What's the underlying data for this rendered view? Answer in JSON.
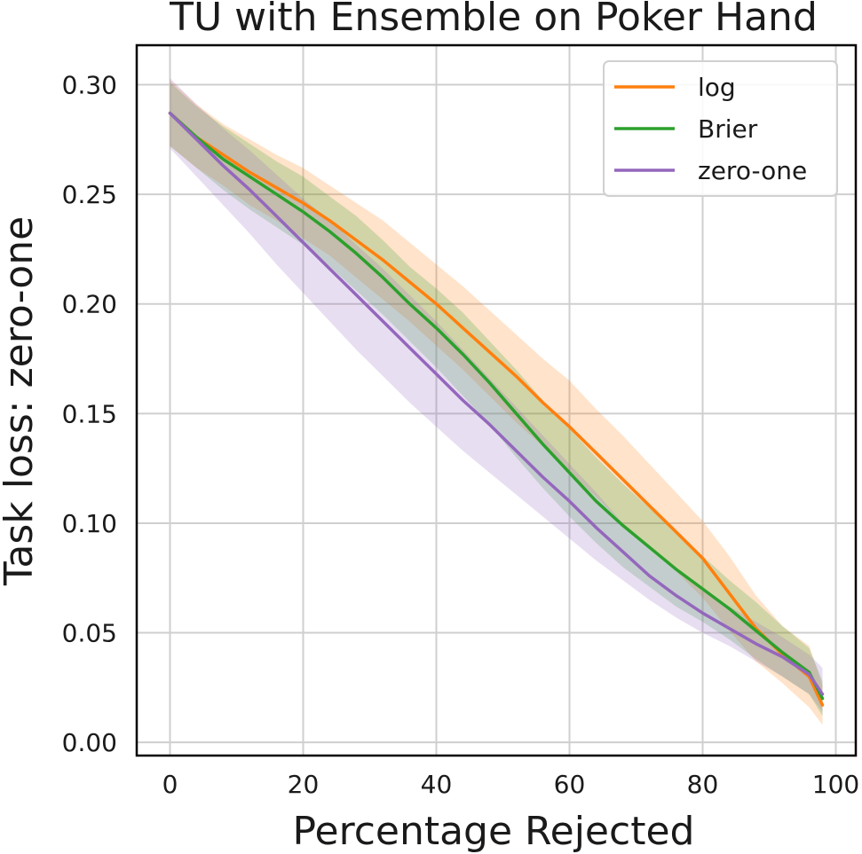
{
  "chart_data": {
    "type": "line",
    "title": "TU with Ensemble on Poker Hand",
    "xlabel": "Percentage Rejected",
    "ylabel": "Task loss: zero-one",
    "xlim": [
      -5,
      103
    ],
    "ylim": [
      -0.006,
      0.318
    ],
    "xticks": [
      0,
      20,
      40,
      60,
      80,
      100
    ],
    "xtick_labels": [
      "0",
      "20",
      "40",
      "60",
      "80",
      "100"
    ],
    "yticks": [
      0.0,
      0.05,
      0.1,
      0.15,
      0.2,
      0.25,
      0.3
    ],
    "ytick_labels": [
      "0.00",
      "0.05",
      "0.10",
      "0.15",
      "0.20",
      "0.25",
      "0.30"
    ],
    "grid": true,
    "legend_position": "top-right",
    "series": [
      {
        "name": "log",
        "color": "#ff7f0e",
        "x": [
          0,
          4,
          8,
          12,
          16,
          20,
          24,
          28,
          32,
          36,
          40,
          44,
          48,
          52,
          56,
          60,
          64,
          68,
          72,
          76,
          80,
          84,
          88,
          92,
          96,
          98
        ],
        "y": [
          0.287,
          0.276,
          0.268,
          0.26,
          0.253,
          0.246,
          0.238,
          0.229,
          0.22,
          0.21,
          0.2,
          0.189,
          0.178,
          0.167,
          0.155,
          0.144,
          0.132,
          0.12,
          0.108,
          0.096,
          0.084,
          0.068,
          0.052,
          0.04,
          0.03,
          0.017
        ],
        "lower": [
          0.272,
          0.262,
          0.254,
          0.245,
          0.238,
          0.23,
          0.222,
          0.212,
          0.202,
          0.192,
          0.181,
          0.17,
          0.158,
          0.146,
          0.135,
          0.123,
          0.112,
          0.1,
          0.089,
          0.078,
          0.066,
          0.051,
          0.037,
          0.027,
          0.016,
          0.008
        ],
        "upper": [
          0.302,
          0.291,
          0.282,
          0.275,
          0.268,
          0.262,
          0.254,
          0.246,
          0.238,
          0.228,
          0.218,
          0.208,
          0.197,
          0.186,
          0.175,
          0.165,
          0.152,
          0.14,
          0.127,
          0.114,
          0.101,
          0.085,
          0.067,
          0.053,
          0.044,
          0.026
        ]
      },
      {
        "name": "Brier",
        "color": "#2ca02c",
        "x": [
          0,
          4,
          8,
          12,
          16,
          20,
          24,
          28,
          32,
          36,
          40,
          44,
          48,
          52,
          56,
          60,
          64,
          68,
          72,
          76,
          80,
          84,
          88,
          92,
          96,
          98
        ],
        "y": [
          0.287,
          0.276,
          0.266,
          0.258,
          0.25,
          0.242,
          0.233,
          0.223,
          0.212,
          0.2,
          0.189,
          0.177,
          0.164,
          0.15,
          0.136,
          0.123,
          0.11,
          0.099,
          0.089,
          0.079,
          0.07,
          0.061,
          0.051,
          0.041,
          0.032,
          0.02
        ],
        "lower": [
          0.272,
          0.262,
          0.252,
          0.243,
          0.235,
          0.227,
          0.217,
          0.206,
          0.195,
          0.183,
          0.171,
          0.158,
          0.145,
          0.13,
          0.116,
          0.103,
          0.091,
          0.08,
          0.071,
          0.062,
          0.055,
          0.047,
          0.038,
          0.03,
          0.022,
          0.012
        ],
        "upper": [
          0.301,
          0.29,
          0.281,
          0.273,
          0.265,
          0.258,
          0.249,
          0.24,
          0.229,
          0.217,
          0.207,
          0.196,
          0.183,
          0.17,
          0.156,
          0.143,
          0.13,
          0.118,
          0.107,
          0.096,
          0.085,
          0.074,
          0.064,
          0.053,
          0.043,
          0.028
        ]
      },
      {
        "name": "zero-one",
        "color": "#9467bd",
        "x": [
          0,
          4,
          8,
          12,
          16,
          20,
          24,
          28,
          32,
          36,
          40,
          44,
          48,
          52,
          56,
          60,
          64,
          68,
          72,
          76,
          80,
          84,
          88,
          92,
          96,
          98
        ],
        "y": [
          0.287,
          0.275,
          0.263,
          0.252,
          0.24,
          0.228,
          0.216,
          0.204,
          0.192,
          0.18,
          0.168,
          0.156,
          0.145,
          0.133,
          0.121,
          0.11,
          0.098,
          0.087,
          0.076,
          0.067,
          0.059,
          0.052,
          0.045,
          0.039,
          0.031,
          0.022
        ],
        "lower": [
          0.271,
          0.258,
          0.245,
          0.232,
          0.218,
          0.205,
          0.192,
          0.179,
          0.167,
          0.155,
          0.144,
          0.133,
          0.123,
          0.113,
          0.103,
          0.093,
          0.083,
          0.074,
          0.065,
          0.057,
          0.05,
          0.044,
          0.037,
          0.03,
          0.022,
          0.014
        ],
        "upper": [
          0.303,
          0.291,
          0.28,
          0.27,
          0.259,
          0.248,
          0.238,
          0.227,
          0.216,
          0.204,
          0.192,
          0.179,
          0.166,
          0.153,
          0.14,
          0.127,
          0.114,
          0.1,
          0.088,
          0.078,
          0.069,
          0.062,
          0.055,
          0.048,
          0.04,
          0.034
        ]
      }
    ]
  }
}
